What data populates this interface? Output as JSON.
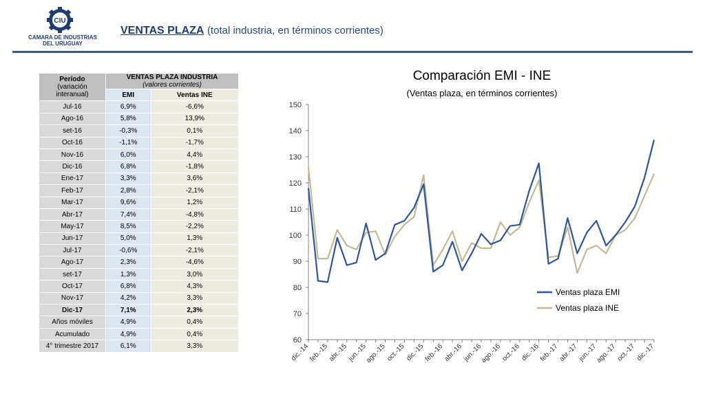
{
  "logo": {
    "mark": "CIU",
    "line1": "CAMARA DE INDUSTRIAS",
    "line2": "DEL URUGUAY"
  },
  "header": {
    "title": "VENTAS PLAZA",
    "subtitle": "(total industria, en términos corrientes)"
  },
  "table": {
    "period_title": "Período",
    "period_note_1": "(variación",
    "period_note_2": "interanual)",
    "group_title": "VENTAS PLAZA INDUSTRIA",
    "group_note": "(valores corrientes)",
    "col_emi": "EMI",
    "col_ine": "Ventas INE",
    "rows": [
      {
        "period": "Jul-16",
        "emi": "6,9%",
        "ine": "-6,6%"
      },
      {
        "period": "Ago-16",
        "emi": "5,8%",
        "ine": "13,9%"
      },
      {
        "period": "set-16",
        "emi": "-0,3%",
        "ine": "0,1%"
      },
      {
        "period": "Oct-16",
        "emi": "-1,1%",
        "ine": "-1,7%"
      },
      {
        "period": "Nov-16",
        "emi": "6,0%",
        "ine": "4,4%"
      },
      {
        "period": "Dic-16",
        "emi": "6,8%",
        "ine": "-1,8%"
      },
      {
        "period": "Ene-17",
        "emi": "3,3%",
        "ine": "3,6%"
      },
      {
        "period": "Feb-17",
        "emi": "2,8%",
        "ine": "-2,1%"
      },
      {
        "period": "Mar-17",
        "emi": "9,6%",
        "ine": "1,2%"
      },
      {
        "period": "Abr-17",
        "emi": "7,4%",
        "ine": "-4,8%"
      },
      {
        "period": "May-17",
        "emi": "8,5%",
        "ine": "-2,2%"
      },
      {
        "period": "Jun-17",
        "emi": "5,0%",
        "ine": "1,3%"
      },
      {
        "period": "Jul-17",
        "emi": "-0,6%",
        "ine": "-2,1%"
      },
      {
        "period": "Ago-17",
        "emi": "2,3%",
        "ine": "-4,6%"
      },
      {
        "period": "set-17",
        "emi": "1,3%",
        "ine": "3,0%"
      },
      {
        "period": "Oct-17",
        "emi": "6,8%",
        "ine": "4,3%"
      },
      {
        "period": "Nov-17",
        "emi": "4,2%",
        "ine": "3,3%"
      },
      {
        "period": "Dic-17",
        "emi": "7,1%",
        "ine": "2,3%",
        "bold": true
      },
      {
        "period": "Años móviles",
        "emi": "4,9%",
        "ine": "0,4%"
      },
      {
        "period": "Acumulado",
        "emi": "4,9%",
        "ine": "0,4%"
      },
      {
        "period": "4° trimestre 2017",
        "emi": "6,1%",
        "ine": "3,3%"
      }
    ]
  },
  "chart": {
    "title": "Comparación EMI - INE",
    "subtitle": "(Ventas plaza, en términos corrientes)"
  },
  "chart_data": {
    "type": "line",
    "title": "Comparación EMI - INE",
    "subtitle": "(Ventas plaza, en términos corrientes)",
    "ylim": [
      60,
      150
    ],
    "yticks": [
      60,
      70,
      80,
      90,
      100,
      110,
      120,
      130,
      140,
      150
    ],
    "x": [
      "dic.-14",
      "ene.-15",
      "feb.-15",
      "mar.-15",
      "abr.-15",
      "may.-15",
      "jun.-15",
      "jul.-15",
      "ago.-15",
      "set.-15",
      "oct.-15",
      "nov.-15",
      "dic.-15",
      "ene.-16",
      "feb.-16",
      "mar.-16",
      "abr.-16",
      "may.-16",
      "jun.-16",
      "jul.-16",
      "ago.-16",
      "set.-16",
      "oct.-16",
      "nov.-16",
      "dic.-16",
      "ene.-17",
      "feb.-17",
      "mar.-17",
      "abr.-17",
      "may.-17",
      "jun.-17",
      "jul.-17",
      "ago.-17",
      "set.-17",
      "oct.-17",
      "nov.-17",
      "dic.-17"
    ],
    "xtick_labels": [
      "dic.-14",
      "feb.-15",
      "abr.-15",
      "jun.-15",
      "ago.-15",
      "oct.-15",
      "dic.-15",
      "feb.-16",
      "abr.-16",
      "jun.-16",
      "ago.-16",
      "oct.-16",
      "dic.-16",
      "feb.-17",
      "abr.-17",
      "jun.-17",
      "ago.-17",
      "oct.-17",
      "dic.-17"
    ],
    "series": [
      {
        "name": "Ventas plaza EMI",
        "color": "#2f5597",
        "values": [
          118,
          82.5,
          82,
          99,
          88.5,
          89.5,
          104.5,
          90.5,
          93,
          104,
          105.5,
          110.5,
          119.5,
          86,
          88.5,
          97.5,
          86.5,
          93,
          100.5,
          96.5,
          98,
          103.5,
          104,
          117,
          127.5,
          89,
          91,
          106.5,
          93,
          101,
          105.5,
          96,
          100,
          105,
          111,
          122,
          136.5
        ]
      },
      {
        "name": "Ventas plaza INE",
        "color": "#c4b997",
        "values": [
          126,
          91,
          91,
          102,
          96,
          94.5,
          101,
          101.5,
          92.5,
          99.5,
          104,
          107,
          123,
          88.5,
          94.5,
          101.5,
          90,
          97,
          95,
          95,
          105,
          100,
          103,
          112.5,
          121,
          91.5,
          92,
          103,
          85.5,
          94.5,
          96,
          93,
          100,
          102,
          106.5,
          115,
          123.5
        ]
      }
    ],
    "legend": "bottom-right"
  }
}
